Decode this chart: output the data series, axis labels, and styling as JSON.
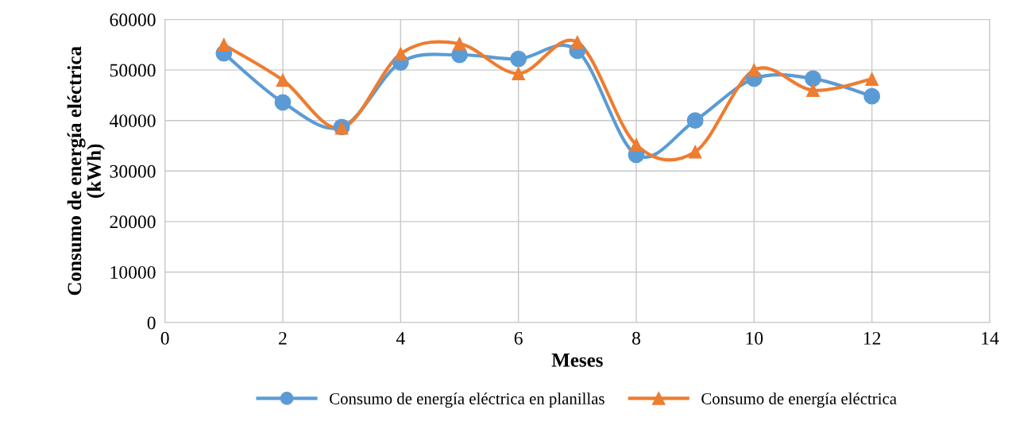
{
  "chart_data": {
    "type": "line",
    "xlabel": "Meses",
    "ylabel": "Consumo de energía eléctrica\n(kWh)",
    "x": [
      1,
      2,
      3,
      4,
      5,
      6,
      7,
      8,
      9,
      10,
      11,
      12
    ],
    "series": [
      {
        "name": "Consumo de energía eléctrica en planillas",
        "color": "#5b9bd5",
        "marker": "circle",
        "values": [
          53300,
          43600,
          38700,
          51500,
          53000,
          52200,
          53800,
          33200,
          40000,
          48300,
          48300,
          44800
        ]
      },
      {
        "name": "Consumo de energía eléctrica",
        "color": "#ed7d31",
        "marker": "triangle",
        "values": [
          55000,
          48000,
          38500,
          53200,
          55200,
          49300,
          55500,
          35200,
          33800,
          50000,
          46000,
          48200
        ]
      }
    ],
    "xlim": [
      0,
      14
    ],
    "xticks": [
      0,
      2,
      4,
      6,
      8,
      10,
      12,
      14
    ],
    "ylim": [
      0,
      60000
    ],
    "yticks": [
      0,
      10000,
      20000,
      30000,
      40000,
      50000,
      60000
    ],
    "grid": true,
    "legend": "bottom",
    "line_style": "solid"
  }
}
